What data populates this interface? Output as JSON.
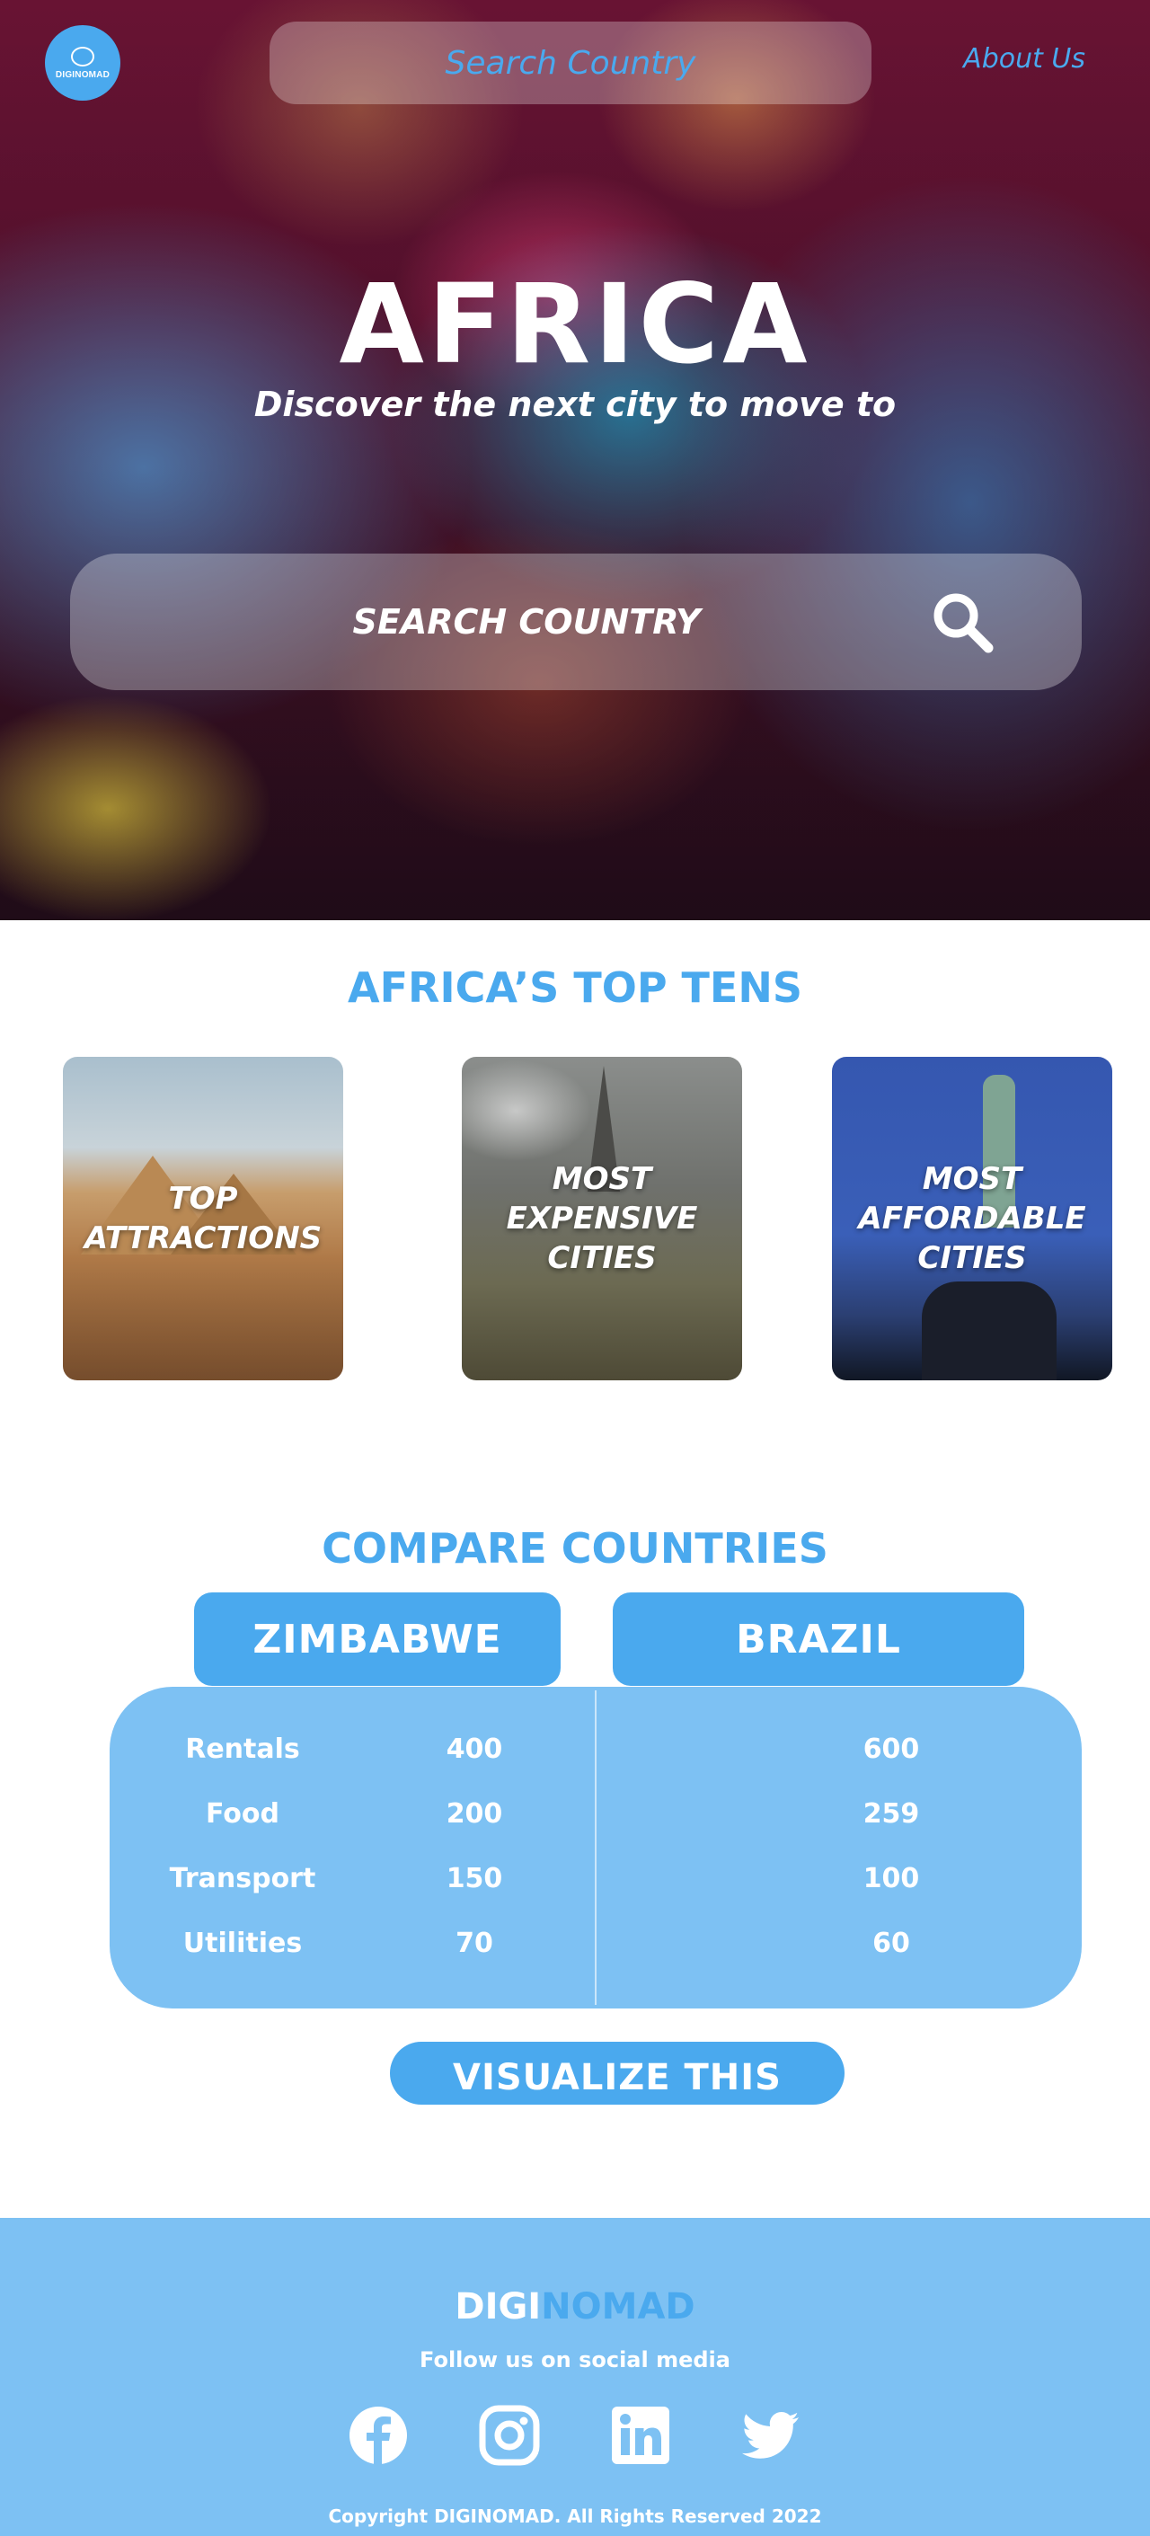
{
  "nav": {
    "logo_text": "DIGINOMAD",
    "search_placeholder": "Search Country",
    "about_label": "About Us"
  },
  "hero": {
    "title": "AFRICA",
    "subtitle": "Discover the next city to move to",
    "search_label": "SEARCH COUNTRY"
  },
  "top_tens": {
    "title": "AFRICA’S TOP TENS",
    "cards": [
      {
        "label": "TOP\nATTRACTIONS"
      },
      {
        "label": "MOST\nEXPENSIVE\nCITIES"
      },
      {
        "label": "MOST\nAFFORDABLE\nCITIES"
      }
    ]
  },
  "compare": {
    "title": "COMPARE COUNTRIES",
    "country_left": "ZIMBABWE",
    "country_right": "BRAZIL",
    "rows": [
      {
        "label": "Rentals",
        "left": "400",
        "right": "600"
      },
      {
        "label": "Food",
        "left": "200",
        "right": "259"
      },
      {
        "label": "Transport",
        "left": "150",
        "right": "100"
      },
      {
        "label": "Utilities",
        "left": "70",
        "right": "60"
      }
    ],
    "visualize_label": "VISUALIZE THIS"
  },
  "footer": {
    "brand_part1": "DIGI",
    "brand_part2": "NOMAD",
    "follow_text": "Follow us on social media",
    "social_icons": [
      "facebook-icon",
      "instagram-icon",
      "linkedin-icon",
      "twitter-icon"
    ],
    "copyright": "Copyright DIGINOMAD. All Rights Reserved 2022"
  },
  "colors": {
    "accent": "#4aa9ee",
    "accent_light": "#7dc1f3",
    "hero_bg": "#5a1230"
  }
}
